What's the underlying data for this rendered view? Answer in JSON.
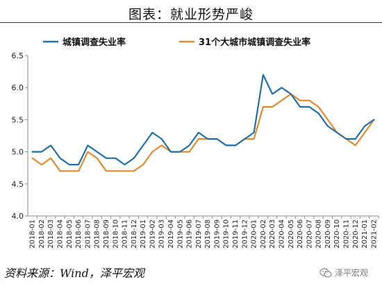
{
  "header": {
    "title": "图表：就业形势严峻"
  },
  "footer": {
    "source": "资料来源：Wind，泽平宏观",
    "watermark": "泽平宏观"
  },
  "chart_data": {
    "type": "line",
    "title": "",
    "xlabel": "",
    "ylabel": "",
    "ylim": [
      4.0,
      6.5
    ],
    "yticks": [
      "4.0",
      "4.5",
      "5.0",
      "5.5",
      "6.0",
      "6.5"
    ],
    "grid": false,
    "legend_placement": "top",
    "x": [
      "2018-01",
      "2018-02",
      "2018-03",
      "2018-04",
      "2018-05",
      "2018-06",
      "2018-07",
      "2018-08",
      "2018-09",
      "2018-10",
      "2018-11",
      "2018-12",
      "2019-01",
      "2019-02",
      "2019-03",
      "2019-04",
      "2019-05",
      "2019-06",
      "2019-07",
      "2019-08",
      "2019-09",
      "2019-10",
      "2019-11",
      "2019-12",
      "2020-01",
      "2020-02",
      "2020-03",
      "2020-04",
      "2020-05",
      "2020-06",
      "2020-07",
      "2020-08",
      "2020-09",
      "2020-10",
      "2020-11",
      "2020-12",
      "2021-01",
      "2021-02"
    ],
    "series": [
      {
        "name": "城镇调查失业率",
        "color": "#1f6fab",
        "values": [
          5.0,
          5.0,
          5.1,
          4.9,
          4.8,
          4.8,
          5.1,
          5.0,
          4.9,
          4.9,
          4.8,
          4.9,
          5.1,
          5.3,
          5.2,
          5.0,
          5.0,
          5.1,
          5.3,
          5.2,
          5.2,
          5.1,
          5.1,
          5.2,
          5.3,
          6.2,
          5.9,
          6.0,
          5.9,
          5.7,
          5.7,
          5.6,
          5.4,
          5.3,
          5.2,
          5.2,
          5.4,
          5.5
        ]
      },
      {
        "name": "31个大城市城镇调查失业率",
        "color": "#e3892f",
        "values": [
          4.9,
          4.8,
          4.9,
          4.7,
          4.7,
          4.7,
          5.0,
          4.9,
          4.7,
          4.7,
          4.7,
          4.7,
          4.8,
          5.0,
          5.1,
          5.0,
          5.0,
          5.0,
          5.2,
          5.2,
          5.2,
          5.1,
          5.1,
          5.2,
          5.2,
          5.7,
          5.7,
          5.8,
          5.9,
          5.8,
          5.8,
          5.7,
          5.5,
          5.3,
          5.2,
          5.1,
          5.3,
          5.5
        ]
      }
    ]
  }
}
